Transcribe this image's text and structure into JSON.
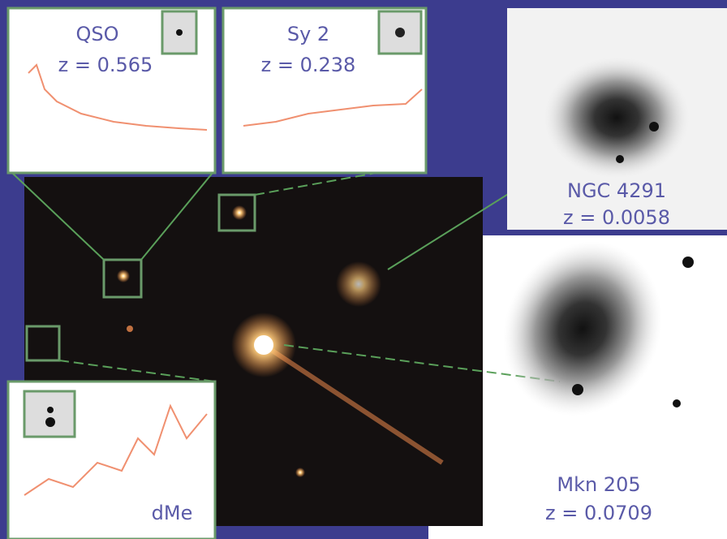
{
  "panels": {
    "qso": {
      "name": "QSO",
      "redshift": "z = 0.565"
    },
    "sy2": {
      "name": "Sy 2",
      "redshift": "z = 0.238"
    },
    "ngc": {
      "name": "NGC 4291",
      "redshift": "z = 0.0058"
    },
    "mkn": {
      "name": "Mkn 205",
      "redshift": "z = 0.0709"
    },
    "dme": {
      "name": "dMe"
    }
  }
}
